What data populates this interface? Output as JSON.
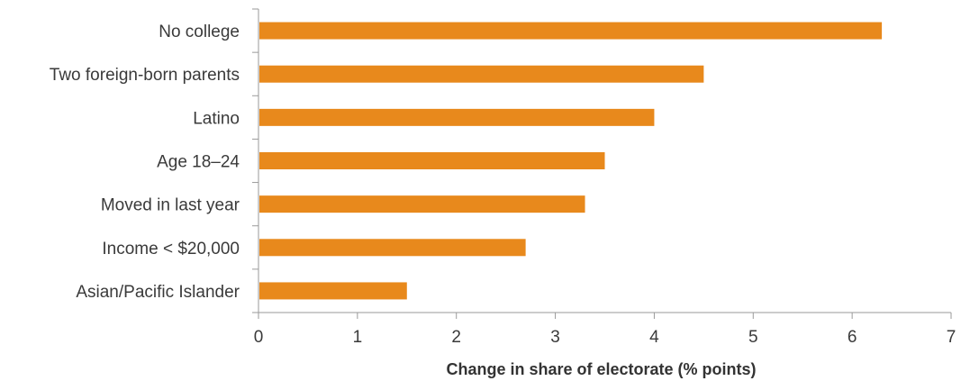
{
  "chart_data": {
    "type": "bar",
    "orientation": "horizontal",
    "title": "",
    "xlabel": "Change in share of electorate (% points)",
    "ylabel": "",
    "categories": [
      "No college",
      "Two foreign-born parents",
      "Latino",
      "Age 18–24",
      "Moved in last year",
      "Income < $20,000",
      "Asian/Pacific Islander"
    ],
    "values": [
      6.3,
      4.5,
      4.0,
      3.5,
      3.3,
      2.7,
      1.5
    ],
    "xlim": [
      0,
      7
    ],
    "xticks": [
      "0",
      "1",
      "2",
      "3",
      "4",
      "5",
      "6",
      "7"
    ],
    "grid": false,
    "legend": "none",
    "bar_color": "#E8891C"
  }
}
